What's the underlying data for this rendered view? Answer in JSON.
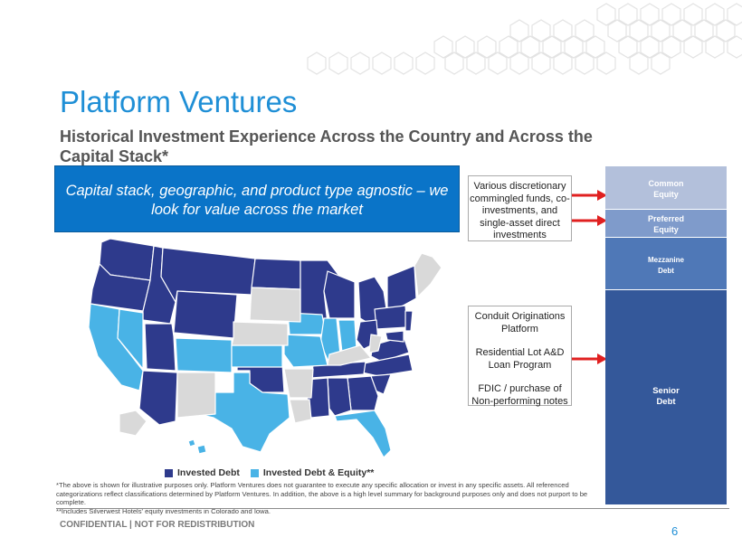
{
  "header": {
    "title": "Platform Ventures",
    "subtitle": "Historical Investment Experience Across the Country and Across the Capital Stack*"
  },
  "callout": {
    "text": "Capital stack, geographic, and product type agnostic – we look for value across the market"
  },
  "box_top": {
    "text": "Various discretionary commingled funds, co-investments, and single-asset direct investments"
  },
  "box_bottom": {
    "line1": "Conduit Originations Platform",
    "line2": "Residential Lot A&D Loan Program",
    "line3": "FDIC / purchase of Non-performing notes"
  },
  "capital_stack": {
    "common_line1": "Common",
    "common_line2": "Equity",
    "preferred_line1": "Preferred",
    "preferred_line2": "Equity",
    "mezz_line1": "Mezzanine",
    "mezz_line2": "Debt",
    "senior_line1": "Senior",
    "senior_line2": "Debt"
  },
  "legend": {
    "invested_debt": "Invested Debt",
    "invested_debt_equity": "Invested Debt & Equity**"
  },
  "colors": {
    "invested_debt": "#2e3a8c",
    "invested_debt_equity": "#49b3e6",
    "not_invested": "#d9d9d9",
    "arrow": "#e02020",
    "accent": "#1f8fd6"
  },
  "footnote": {
    "line1": "*The above is shown for illustrative purposes only. Platform Ventures does not guarantee to execute any specific allocation or invest in any specific assets. All referenced categorizations reflect classifications determined by Platform Ventures. In addition, the above is a high level summary for background purposes only and does not purport to be complete.",
    "line2": "**Includes Silverwest Hotels' equity investments in Colorado and Iowa."
  },
  "footer": {
    "confidential": "CONFIDENTIAL  |  NOT FOR REDISTRIBUTION",
    "page_number": "6"
  }
}
